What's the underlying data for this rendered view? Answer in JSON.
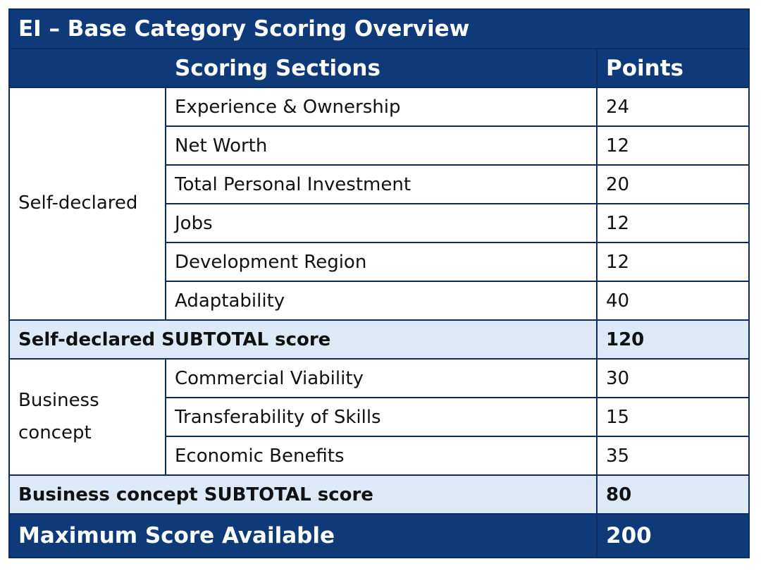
{
  "title": "EI – Base Category Scoring Overview",
  "header": {
    "sections": "Scoring Sections",
    "points": "Points"
  },
  "groups": [
    {
      "label": "Self-declared",
      "items": [
        {
          "name": "Experience & Ownership",
          "points": "24"
        },
        {
          "name": "Net Worth",
          "points": "12"
        },
        {
          "name": "Total Personal Investment",
          "points": "20"
        },
        {
          "name": "Jobs",
          "points": "12"
        },
        {
          "name": "Development Region",
          "points": "12"
        },
        {
          "name": "Adaptability",
          "points": "40"
        }
      ],
      "subtotal_label": "Self-declared SUBTOTAL score",
      "subtotal_points": "120"
    },
    {
      "label": "Business concept",
      "items": [
        {
          "name": "Commercial Viability",
          "points": "30"
        },
        {
          "name": "Transferability of Skills",
          "points": "15"
        },
        {
          "name": "Economic Benefits",
          "points": "35"
        }
      ],
      "subtotal_label": "Business concept SUBTOTAL score",
      "subtotal_points": "80"
    }
  ],
  "total": {
    "label": "Maximum Score Available",
    "points": "200"
  }
}
